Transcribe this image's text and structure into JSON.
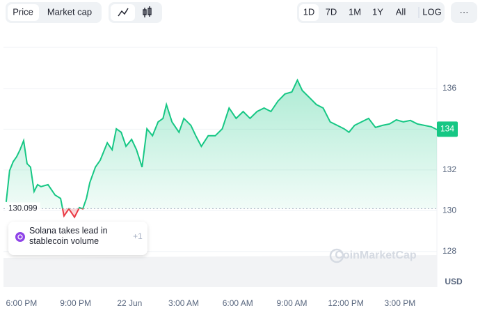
{
  "toolbar": {
    "metric_tabs": [
      "Price",
      "Market cap"
    ],
    "ranges": [
      "1D",
      "7D",
      "1M",
      "1Y",
      "All",
      "LOG"
    ],
    "more": "···"
  },
  "news_card": {
    "text": "Solana takes lead in stablecoin volume",
    "count": "+1"
  },
  "watermark": "CoinMarketCap",
  "currency": "USD",
  "chart_data": {
    "type": "line",
    "series": [
      {
        "name": "Price",
        "color": "#16c784",
        "below_color": "#ea3943",
        "x": [
          17.15,
          17.34,
          17.54,
          17.73,
          17.92,
          18.12,
          18.31,
          18.5,
          18.7,
          18.89,
          19.08,
          19.47,
          19.86,
          20.17,
          20.36,
          20.63,
          20.94,
          21.21,
          21.4,
          21.6,
          21.79,
          22.1,
          22.37,
          22.76,
          23.03,
          23.26,
          23.53,
          23.8,
          24.11,
          24.38,
          24.69,
          24.96,
          25.27,
          25.58,
          25.85,
          26.04,
          26.35,
          26.74,
          27.01,
          27.4,
          27.67,
          27.98,
          28.36,
          28.75,
          29.14,
          29.52,
          29.91,
          30.3,
          30.68,
          31.07,
          31.46,
          31.84,
          32.23,
          32.62,
          33,
          33.31,
          33.58,
          33.97,
          34.36,
          34.74,
          35.13,
          35.52,
          35.9,
          36.17,
          36.48,
          36.87,
          37.26,
          37.64,
          38.03,
          38.42,
          38.8,
          39.19,
          39.58,
          39.96,
          40.35,
          40.74,
          41.05
        ],
        "values": [
          130.43,
          131.97,
          132.41,
          132.65,
          132.99,
          133.44,
          132.31,
          132.14,
          130.94,
          131.28,
          131.18,
          131.28,
          130.77,
          130.6,
          129.74,
          130.09,
          129.68,
          130.15,
          130.09,
          130.6,
          131.38,
          132.14,
          132.48,
          133.33,
          132.99,
          134.02,
          133.85,
          133.16,
          133.5,
          132.99,
          132.14,
          134.02,
          133.68,
          134.36,
          134.53,
          135.21,
          134.36,
          133.85,
          134.53,
          134.19,
          133.68,
          133.16,
          133.68,
          133.68,
          134.02,
          135.04,
          134.53,
          134.87,
          134.53,
          134.87,
          135.04,
          134.87,
          135.38,
          135.73,
          135.83,
          136.41,
          135.9,
          135.56,
          135.21,
          135.04,
          134.36,
          134.19,
          134.02,
          133.85,
          134.19,
          134.36,
          134.53,
          134.09,
          134.19,
          134.26,
          134.46,
          134.36,
          134.43,
          134.26,
          134.19,
          134.12,
          133.98
        ]
      }
    ],
    "baseline": 130.099,
    "last_price_label": 134,
    "xlim": [
      17,
      41.05
    ],
    "xticks": [
      {
        "value": 18,
        "label": "6:00 PM"
      },
      {
        "value": 21,
        "label": "9:00 PM"
      },
      {
        "value": 24,
        "label": "22 Jun"
      },
      {
        "value": 27,
        "label": "3:00 AM"
      },
      {
        "value": 30,
        "label": "6:00 AM"
      },
      {
        "value": 33,
        "label": "9:00 AM"
      },
      {
        "value": 36,
        "label": "12:00 PM"
      },
      {
        "value": 39,
        "label": "3:00 PM"
      }
    ],
    "ylim": [
      127,
      138
    ],
    "yticks": [
      128,
      130,
      132,
      134,
      136
    ],
    "grid": true
  }
}
